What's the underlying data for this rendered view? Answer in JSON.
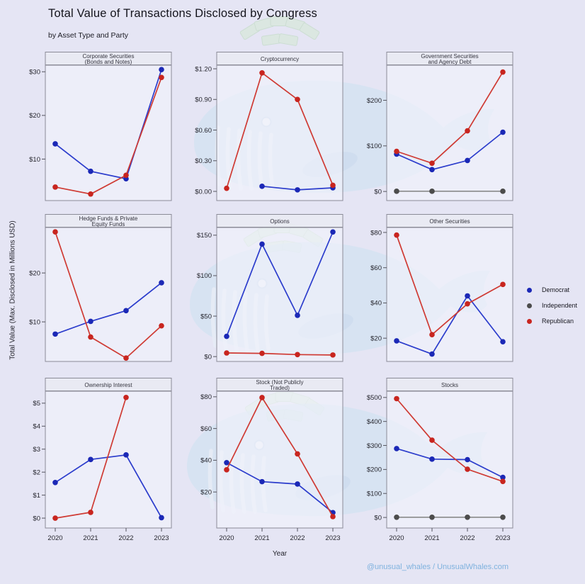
{
  "title": "Total Value of Transactions Disclosed by Congress",
  "subtitle": "by Asset Type and Party",
  "y_axis_label": "Total Value (Max. Disclosed in Millions USD)",
  "x_axis_label": "Year",
  "credit": "@unusual_whales / UnusualWhales.com",
  "colors": {
    "background": "#e5e5f4",
    "panel_fill": "#f2f4fb",
    "panel_border": "#8b8b97",
    "header_fill": "#e9eaf2",
    "democrat": "#1b28b6",
    "democrat_line": "#2b3ccc",
    "independent": "#4c4c4c",
    "independent_line": "#8a8a8a",
    "republican": "#c8251f",
    "republican_line": "#cf3a33",
    "credit_blue": "#7fb2de",
    "watermark_blue": "#cfe2f2",
    "watermark_green": "#d8e9da"
  },
  "legend": {
    "items": [
      {
        "label": "Democrat",
        "dot_color": "#1b28b6",
        "line_color": "#2b3ccc"
      },
      {
        "label": "Independent",
        "dot_color": "#4c4c4c",
        "line_color": "#8a8a8a"
      },
      {
        "label": "Republican",
        "dot_color": "#c8251f",
        "line_color": "#cf3a33"
      }
    ]
  },
  "x_tick_labels": [
    "2020",
    "2021",
    "2022",
    "2023"
  ],
  "chart_data": [
    {
      "type": "line",
      "id": "corporate-securities",
      "title": "Corporate Securities (Bonds and Notes)",
      "title_lines": [
        "Corporate Securities",
        "(Bonds and Notes)"
      ],
      "x": [
        2020,
        2021,
        2022,
        2023
      ],
      "ylim": [
        0.5,
        31.5
      ],
      "yticks": [
        {
          "v": 10,
          "label": "$10"
        },
        {
          "v": 20,
          "label": "$20"
        },
        {
          "v": 30,
          "label": "$30"
        }
      ],
      "series": [
        {
          "name": "Democrat",
          "values": [
            13.5,
            7.2,
            5.5,
            30.5
          ]
        },
        {
          "name": "Republican",
          "values": [
            3.6,
            2.0,
            6.3,
            28.7
          ]
        }
      ]
    },
    {
      "type": "line",
      "id": "cryptocurrency",
      "title": "Cryptocurrency",
      "title_lines": [
        "Cryptocurrency"
      ],
      "x": [
        2020,
        2021,
        2022,
        2023
      ],
      "ylim": [
        -0.09,
        1.235
      ],
      "yticks": [
        {
          "v": 0.0,
          "label": "$0.00"
        },
        {
          "v": 0.3,
          "label": "$0.30"
        },
        {
          "v": 0.6,
          "label": "$0.60"
        },
        {
          "v": 0.9,
          "label": "$0.90"
        },
        {
          "v": 1.2,
          "label": "$1.20"
        }
      ],
      "series": [
        {
          "name": "Democrat",
          "values": [
            null,
            0.05,
            0.015,
            0.035
          ]
        },
        {
          "name": "Republican",
          "values": [
            0.03,
            1.16,
            0.9,
            0.06
          ]
        }
      ]
    },
    {
      "type": "line",
      "id": "government-securities",
      "title": "Government Securities and Agency Debt",
      "title_lines": [
        "Government Securities",
        "and Agency Debt"
      ],
      "x": [
        2020,
        2021,
        2022,
        2023
      ],
      "ylim": [
        -20,
        277
      ],
      "yticks": [
        {
          "v": 0,
          "label": "$0"
        },
        {
          "v": 100,
          "label": "$100"
        },
        {
          "v": 200,
          "label": "$200"
        }
      ],
      "series": [
        {
          "name": "Independent",
          "values": [
            0.5,
            0.5,
            null,
            0.5
          ]
        },
        {
          "name": "Democrat",
          "values": [
            82,
            48,
            68,
            130
          ]
        },
        {
          "name": "Republican",
          "values": [
            88,
            62,
            133,
            262
          ]
        }
      ]
    },
    {
      "type": "line",
      "id": "hedge-funds",
      "title": "Hedge Funds & Private Equity Funds",
      "title_lines": [
        "Hedge Funds & Private",
        "Equity Funds"
      ],
      "x": [
        2020,
        2021,
        2022,
        2023
      ],
      "ylim": [
        1.9,
        29.3
      ],
      "yticks": [
        {
          "v": 10,
          "label": "$10"
        },
        {
          "v": 20,
          "label": "$20"
        }
      ],
      "series": [
        {
          "name": "Democrat",
          "values": [
            7.5,
            10.1,
            12.3,
            18.0
          ]
        },
        {
          "name": "Republican",
          "values": [
            28.4,
            6.9,
            2.6,
            9.2
          ]
        }
      ]
    },
    {
      "type": "line",
      "id": "options",
      "title": "Options",
      "title_lines": [
        "Options"
      ],
      "x": [
        2020,
        2021,
        2022,
        2023
      ],
      "ylim": [
        -6,
        159.5
      ],
      "yticks": [
        {
          "v": 0,
          "label": "$0"
        },
        {
          "v": 50,
          "label": "$50"
        },
        {
          "v": 100,
          "label": "$100"
        },
        {
          "v": 150,
          "label": "$150"
        }
      ],
      "series": [
        {
          "name": "Democrat",
          "values": [
            25,
            139,
            51,
            154
          ]
        },
        {
          "name": "Republican",
          "values": [
            4.5,
            4,
            2.5,
            2
          ]
        }
      ]
    },
    {
      "type": "line",
      "id": "other-securities",
      "title": "Other Securities",
      "title_lines": [
        "Other Securities"
      ],
      "x": [
        2020,
        2021,
        2022,
        2023
      ],
      "ylim": [
        6.8,
        82.8
      ],
      "yticks": [
        {
          "v": 20,
          "label": "$20"
        },
        {
          "v": 40,
          "label": "$40"
        },
        {
          "v": 60,
          "label": "$60"
        },
        {
          "v": 80,
          "label": "$80"
        }
      ],
      "series": [
        {
          "name": "Democrat",
          "values": [
            18.5,
            11,
            44,
            18
          ]
        },
        {
          "name": "Republican",
          "values": [
            78.5,
            22,
            39.5,
            50.5
          ]
        }
      ]
    },
    {
      "type": "line",
      "id": "ownership-interest",
      "title": "Ownership Interest",
      "title_lines": [
        "Ownership Interest"
      ],
      "x": [
        2020,
        2021,
        2022,
        2023
      ],
      "ylim": [
        -0.43,
        5.52
      ],
      "yticks": [
        {
          "v": 0,
          "label": "$0"
        },
        {
          "v": 1,
          "label": "$1"
        },
        {
          "v": 2,
          "label": "$2"
        },
        {
          "v": 3,
          "label": "$3"
        },
        {
          "v": 4,
          "label": "$4"
        },
        {
          "v": 5,
          "label": "$5"
        }
      ],
      "series": [
        {
          "name": "Democrat",
          "values": [
            1.55,
            2.55,
            2.75,
            0.02
          ]
        },
        {
          "name": "Republican",
          "values": [
            0.0,
            0.25,
            5.25,
            null
          ]
        }
      ]
    },
    {
      "type": "line",
      "id": "stock-not-publicly-traded",
      "title": "Stock (Not Publicly Traded)",
      "title_lines": [
        "Stock (Not Publicly",
        "Traded)"
      ],
      "x": [
        2020,
        2021,
        2022,
        2023
      ],
      "ylim": [
        -2.7,
        83.5
      ],
      "yticks": [
        {
          "v": 20,
          "label": "$20"
        },
        {
          "v": 40,
          "label": "$40"
        },
        {
          "v": 60,
          "label": "$60"
        },
        {
          "v": 80,
          "label": "$80"
        }
      ],
      "series": [
        {
          "name": "Democrat",
          "values": [
            38.5,
            26.5,
            25,
            7
          ]
        },
        {
          "name": "Republican",
          "values": [
            34,
            79.5,
            44,
            4.5
          ]
        }
      ]
    },
    {
      "type": "line",
      "id": "stocks",
      "title": "Stocks",
      "title_lines": [
        "Stocks"
      ],
      "x": [
        2020,
        2021,
        2022,
        2023
      ],
      "ylim": [
        -44,
        526
      ],
      "yticks": [
        {
          "v": 0,
          "label": "$0"
        },
        {
          "v": 100,
          "label": "$100"
        },
        {
          "v": 200,
          "label": "$200"
        },
        {
          "v": 300,
          "label": "$300"
        },
        {
          "v": 400,
          "label": "$400"
        },
        {
          "v": 500,
          "label": "$500"
        }
      ],
      "series": [
        {
          "name": "Independent",
          "values": [
            1,
            1,
            1,
            1
          ]
        },
        {
          "name": "Democrat",
          "values": [
            287,
            243,
            241,
            167
          ]
        },
        {
          "name": "Republican",
          "values": [
            495,
            322,
            201,
            150
          ]
        }
      ]
    }
  ]
}
